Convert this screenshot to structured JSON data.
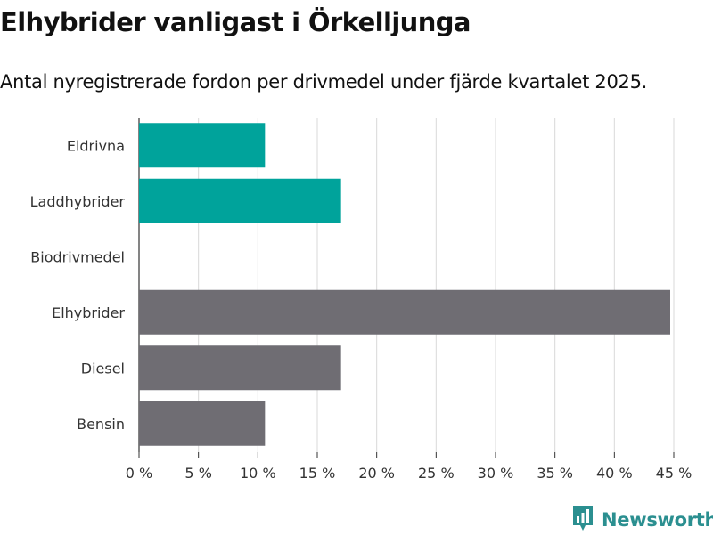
{
  "header": {
    "title": "Elhybrider vanligast i Örkelljunga",
    "subtitle": "Antal nyregistrerade fordon per drivmedel under fjärde kvartalet 2025."
  },
  "brand": {
    "name": "Newsworthy",
    "logo_icon": "newsworthy-logo-icon"
  },
  "colors": {
    "teal": "#00a39b",
    "gray": "#6f6d73",
    "grid": "#d9d9d9"
  },
  "chart_data": {
    "type": "bar",
    "orientation": "horizontal",
    "title": "Elhybrider vanligast i Örkelljunga",
    "subtitle": "Antal nyregistrerade fordon per drivmedel under fjärde kvartalet 2025.",
    "categories": [
      "Eldrivna",
      "Laddhybrider",
      "Biodrivmedel",
      "Elhybrider",
      "Diesel",
      "Bensin"
    ],
    "values": [
      10.6,
      17.0,
      0,
      44.7,
      17.0,
      10.6
    ],
    "bar_colors": [
      "teal",
      "teal",
      "teal",
      "gray",
      "gray",
      "gray"
    ],
    "unit": "%",
    "xlim": [
      0,
      45
    ],
    "xticks": [
      0,
      5,
      10,
      15,
      20,
      25,
      30,
      35,
      40,
      45
    ],
    "xtick_labels": [
      "0 %",
      "5 %",
      "10 %",
      "15 %",
      "20 %",
      "25 %",
      "30 %",
      "35 %",
      "40 %",
      "45 %"
    ],
    "xlabel": "",
    "ylabel": "",
    "grid": "vertical",
    "legend": "none"
  }
}
